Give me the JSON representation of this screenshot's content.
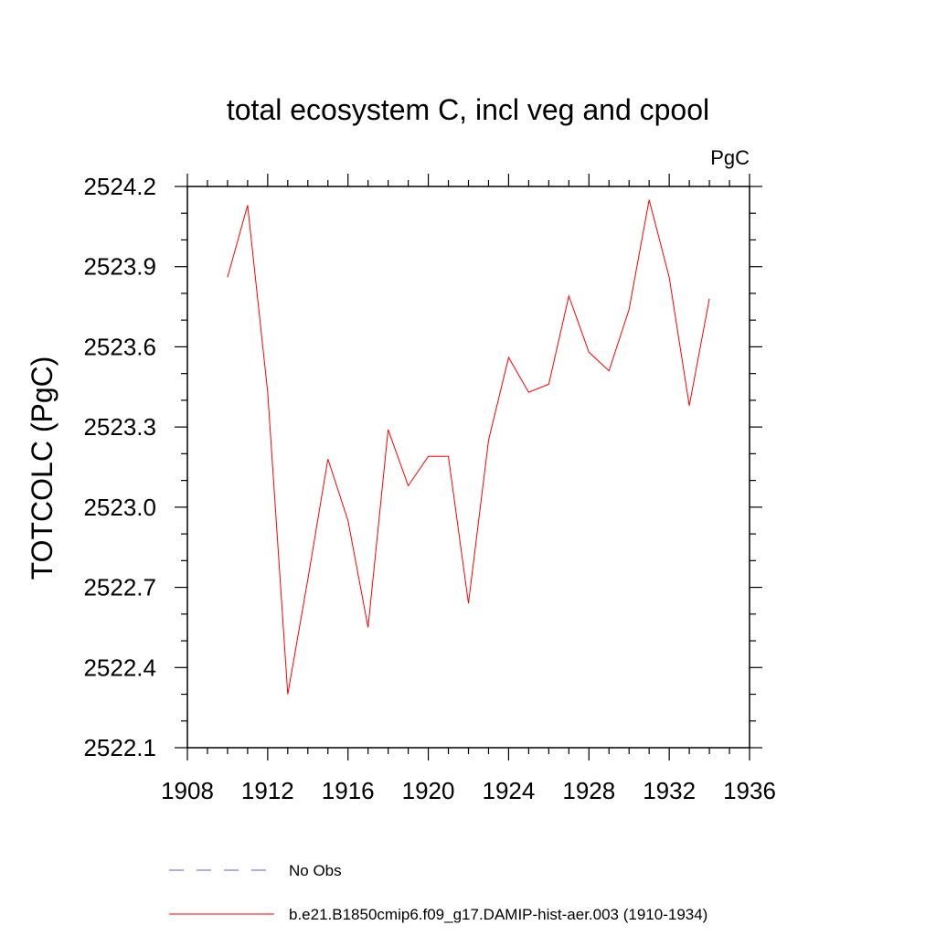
{
  "chart_data": {
    "type": "line",
    "title": "total ecosystem C, incl veg and cpool",
    "units_label": "PgC",
    "ylabel": "TOTCOLC  (PgC)",
    "xlabel": "",
    "xlim": [
      1908,
      1936
    ],
    "ylim": [
      2522.1,
      2524.2
    ],
    "xticks": [
      "1908",
      "1912",
      "1916",
      "1920",
      "1924",
      "1928",
      "1932",
      "1936"
    ],
    "yticks": [
      "2522.1",
      "2522.4",
      "2522.7",
      "2523.0",
      "2523.3",
      "2523.6",
      "2523.9",
      "2524.2"
    ],
    "grid": false,
    "series": [
      {
        "name": "b.e21.B1850cmip6.f09_g17.DAMIP-hist-aer.003 (1910-1934)",
        "color": "#ff0000",
        "style": "solid",
        "x": [
          1910,
          1911,
          1912,
          1913,
          1914,
          1915,
          1916,
          1917,
          1918,
          1919,
          1920,
          1921,
          1922,
          1923,
          1924,
          1925,
          1926,
          1927,
          1928,
          1929,
          1930,
          1931,
          1932,
          1933,
          1934
        ],
        "y": [
          2523.86,
          2524.13,
          2523.43,
          2522.3,
          2522.73,
          2523.18,
          2522.95,
          2522.55,
          2523.29,
          2523.08,
          2523.19,
          2523.19,
          2522.64,
          2523.25,
          2523.56,
          2523.43,
          2523.46,
          2523.79,
          2523.58,
          2523.51,
          2523.74,
          2524.15,
          2523.86,
          2523.38,
          2523.78
        ]
      }
    ],
    "legend": {
      "placement": "bottom",
      "entries": [
        {
          "label": "No Obs",
          "color": "#6a5acd",
          "style": "dashed"
        },
        {
          "label": "b.e21.B1850cmip6.f09_g17.DAMIP-hist-aer.003 (1910-1934)",
          "color": "#ff0000",
          "style": "solid"
        }
      ]
    }
  }
}
